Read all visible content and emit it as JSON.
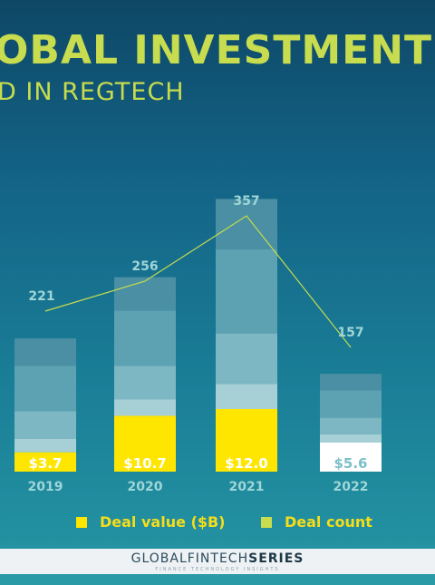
{
  "header": {
    "title": "OBAL INVESTMENT AC",
    "subtitle": "D IN REGTECH"
  },
  "chart_data": {
    "type": "bar",
    "categories": [
      "2019",
      "2020",
      "2021",
      "2022"
    ],
    "series": [
      {
        "name": "Deal value ($B)",
        "values": [
          3.7,
          10.7,
          12.0,
          5.6
        ],
        "labels": [
          "$3.7",
          "$10.7",
          "$12.0",
          "$5.6"
        ],
        "type": "bar"
      },
      {
        "name": "Deal count",
        "values": [
          221,
          256,
          357,
          157
        ],
        "type": "line"
      }
    ],
    "legend": {
      "placement": "bottom"
    },
    "grid": false
  },
  "legend": {
    "deal_value": "Deal value ($B)",
    "deal_count": "Deal count"
  },
  "colors": {
    "title": "#c7dc4e",
    "deal_value_bar": "#ffe600",
    "deal_value_bar_2022": "#ffffff",
    "deal_count_line": "#c7dc4e",
    "count_label": "#9fd6d8",
    "year_label": "#9fd6d8",
    "legend_text": "#f5dd1a",
    "deal_count_swatch": "#c7dc4e"
  },
  "footer": {
    "brand_a": "GLOBALFINTECH",
    "brand_b": "SERIES",
    "tagline": "FINANCE TECHNOLOGY INSIGHTS"
  }
}
